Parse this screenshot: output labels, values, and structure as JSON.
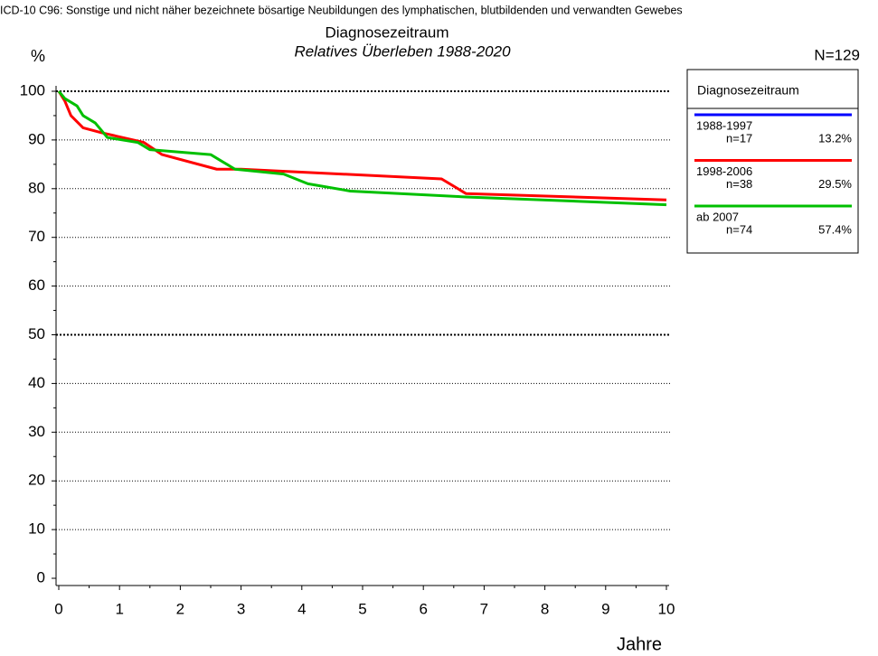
{
  "chart_data": {
    "type": "line",
    "header": "ICD-10 C96: Sonstige und nicht näher bezeichnete bösartige Neubildungen des lymphatischen, blutbildenden und verwandten Gewebes",
    "title": "Diagnosezeitraum",
    "subtitle": "Relatives Überleben 1988-2020",
    "y_label": "%",
    "x_label": "Jahre",
    "total": "N=129",
    "legend_title": "Diagnosezeitraum",
    "xlim": [
      0,
      10
    ],
    "xticks": [
      0,
      1,
      2,
      3,
      4,
      5,
      6,
      7,
      8,
      9,
      10
    ],
    "ylim": [
      0,
      100
    ],
    "yticks": [
      0,
      10,
      20,
      30,
      40,
      50,
      60,
      70,
      80,
      90,
      100
    ],
    "grid": true,
    "bold_gridlines": [
      50,
      100
    ],
    "series": [
      {
        "name": "1988-1997",
        "count": "n=17",
        "share": "13.2%",
        "color": "#0000ff",
        "x": [],
        "values": []
      },
      {
        "name": "1998-2006",
        "count": "n=38",
        "share": "29.5%",
        "color": "#ff0000",
        "x": [
          0,
          0.1,
          0.2,
          0.4,
          0.7,
          1.4,
          1.7,
          2.6,
          3,
          6.3,
          6.7,
          10
        ],
        "values": [
          100,
          98,
          95,
          92.5,
          91.5,
          89.5,
          87,
          84,
          84,
          82,
          79,
          77.7
        ]
      },
      {
        "name": "ab 2007",
        "count": "n=74",
        "share": "57.4%",
        "color": "#00c000",
        "x": [
          0,
          0.1,
          0.3,
          0.4,
          0.6,
          0.8,
          1.3,
          1.5,
          2.5,
          2.7,
          2.9,
          3.7,
          4.1,
          4.8,
          6.7,
          10
        ],
        "values": [
          100,
          98.5,
          97,
          95,
          93.5,
          90.5,
          89.5,
          88,
          87,
          85.5,
          84,
          83,
          81,
          79.5,
          78.3,
          76.7
        ]
      }
    ]
  }
}
